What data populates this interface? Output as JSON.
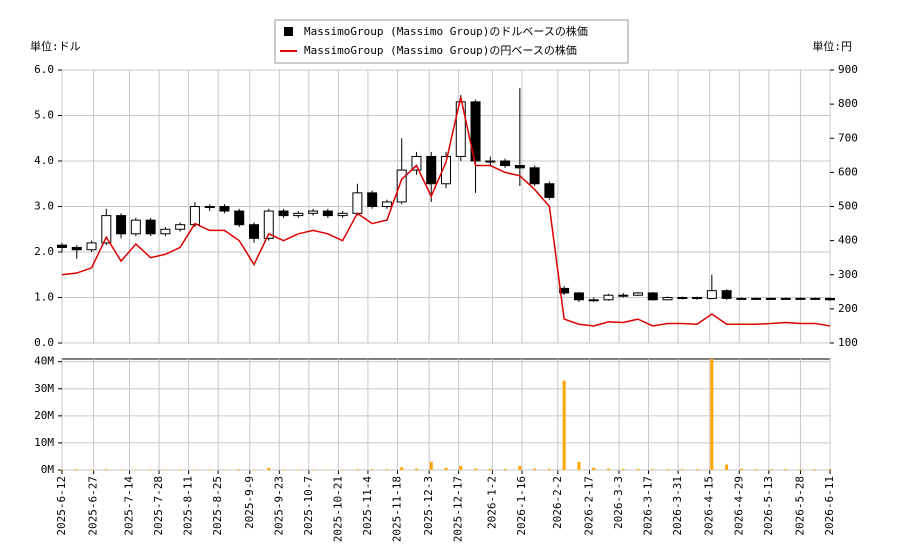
{
  "chart_data": {
    "type": "candlestick",
    "legend": "top",
    "y_unit_label": "単位:ドル",
    "y2_unit_label": "単位:円",
    "x": [
      "2025-06-12",
      "2025-06-19",
      "2025-06-26",
      "2025-07-03",
      "2025-07-10",
      "2025-07-17",
      "2025-07-24",
      "2025-07-31",
      "2025-08-07",
      "2025-08-14",
      "2025-08-21",
      "2025-08-28",
      "2025-09-04",
      "2025-09-11",
      "2025-09-18",
      "2025-09-25",
      "2025-10-02",
      "2025-10-09",
      "2025-10-16",
      "2025-10-23",
      "2025-10-30",
      "2025-11-06",
      "2025-11-13",
      "2025-11-20",
      "2025-11-27",
      "2025-12-04",
      "2025-12-11",
      "2025-12-18",
      "2025-12-25",
      "2026-01-01",
      "2026-01-08",
      "2026-01-15",
      "2026-01-22",
      "2026-01-29",
      "2026-02-05",
      "2026-02-12",
      "2026-02-19",
      "2026-02-26",
      "2026-03-05",
      "2026-03-12",
      "2026-03-19",
      "2026-03-26",
      "2026-04-02",
      "2026-04-09",
      "2026-04-16",
      "2026-04-23",
      "2026-04-30",
      "2026-05-07",
      "2026-05-14",
      "2026-05-21",
      "2026-05-28",
      "2026-06-04",
      "2026-06-11"
    ],
    "xlim": [
      "2025-06-12",
      "2026-06-11"
    ],
    "xticks": [
      {
        "value": "2025-06-12",
        "label": "2025-6-12"
      },
      {
        "value": "2025-06-27",
        "label": "2025-6-27"
      },
      {
        "value": "2025-07-14",
        "label": "2025-7-14"
      },
      {
        "value": "2025-07-28",
        "label": "2025-7-28"
      },
      {
        "value": "2025-08-11",
        "label": "2025-8-11"
      },
      {
        "value": "2025-08-25",
        "label": "2025-8-25"
      },
      {
        "value": "2025-09-09",
        "label": "2025-9-9"
      },
      {
        "value": "2025-09-23",
        "label": "2025-9-23"
      },
      {
        "value": "2025-10-07",
        "label": "2025-10-7"
      },
      {
        "value": "2025-10-21",
        "label": "2025-10-21"
      },
      {
        "value": "2025-11-04",
        "label": "2025-11-4"
      },
      {
        "value": "2025-11-18",
        "label": "2025-11-18"
      },
      {
        "value": "2025-12-03",
        "label": "2025-12-3"
      },
      {
        "value": "2025-12-17",
        "label": "2025-12-17"
      },
      {
        "value": "2026-01-02",
        "label": "2026-1-2"
      },
      {
        "value": "2026-01-16",
        "label": "2026-1-16"
      },
      {
        "value": "2026-02-02",
        "label": "2026-2-2"
      },
      {
        "value": "2026-02-17",
        "label": "2026-2-17"
      },
      {
        "value": "2026-03-03",
        "label": "2026-3-3"
      },
      {
        "value": "2026-03-17",
        "label": "2026-3-17"
      },
      {
        "value": "2026-03-31",
        "label": "2026-3-31"
      },
      {
        "value": "2026-04-15",
        "label": "2026-4-15"
      },
      {
        "value": "2026-04-29",
        "label": "2026-4-29"
      },
      {
        "value": "2026-05-13",
        "label": "2026-5-13"
      },
      {
        "value": "2026-05-28",
        "label": "2026-5-28"
      },
      {
        "value": "2026-06-11",
        "label": "2026-6-11"
      }
    ],
    "ylim": [
      0,
      6
    ],
    "yticks": [
      {
        "value": 0,
        "label": "0.0"
      },
      {
        "value": 1,
        "label": "1.0"
      },
      {
        "value": 2,
        "label": "2.0"
      },
      {
        "value": 3,
        "label": "3.0"
      },
      {
        "value": 4,
        "label": "4.0"
      },
      {
        "value": 5,
        "label": "5.0"
      },
      {
        "value": 6,
        "label": "6.0"
      }
    ],
    "y2lim": [
      100,
      900
    ],
    "y2ticks": [
      100,
      200,
      300,
      400,
      500,
      600,
      700,
      800,
      900
    ],
    "grid": true,
    "series": [
      {
        "name": "MassimoGroup (Massimo Group)のドルベースの株価",
        "color": "#000000",
        "open": [
          2.15,
          2.1,
          2.05,
          2.2,
          2.8,
          2.4,
          2.7,
          2.4,
          2.5,
          2.6,
          3.0,
          3.0,
          2.9,
          2.6,
          2.3,
          2.9,
          2.8,
          2.85,
          2.9,
          2.8,
          2.85,
          3.3,
          3.0,
          3.1,
          3.8,
          4.1,
          3.5,
          4.1,
          5.3,
          4.0,
          4.0,
          3.9,
          3.85,
          3.5,
          1.2,
          1.1,
          0.95,
          0.95,
          1.05,
          1.05,
          1.1,
          0.95,
          1.0,
          1.0,
          0.98,
          1.15,
          0.98,
          0.98,
          0.98,
          0.98,
          0.98,
          0.98,
          0.98
        ],
        "high": [
          2.2,
          2.15,
          2.25,
          2.95,
          2.85,
          2.75,
          2.75,
          2.55,
          2.65,
          3.1,
          3.05,
          3.05,
          2.95,
          2.65,
          2.95,
          2.95,
          2.9,
          2.95,
          2.95,
          2.9,
          3.5,
          3.35,
          3.15,
          4.5,
          4.2,
          4.2,
          4.2,
          5.45,
          5.35,
          4.1,
          4.05,
          5.6,
          3.9,
          3.55,
          1.25,
          1.12,
          1.0,
          1.08,
          1.1,
          1.12,
          1.12,
          1.02,
          1.02,
          1.02,
          1.5,
          1.18,
          1.0,
          1.0,
          1.0,
          1.0,
          1.0,
          1.0,
          1.0
        ],
        "low": [
          2.0,
          1.85,
          2.0,
          2.15,
          2.3,
          2.35,
          2.35,
          2.35,
          2.45,
          2.55,
          2.9,
          2.85,
          2.55,
          2.2,
          2.25,
          2.75,
          2.75,
          2.8,
          2.75,
          2.75,
          2.8,
          2.95,
          2.95,
          3.05,
          3.7,
          3.1,
          3.4,
          4.0,
          3.3,
          3.9,
          3.85,
          3.45,
          3.45,
          3.15,
          1.05,
          0.9,
          0.9,
          0.93,
          1.0,
          1.03,
          0.93,
          0.94,
          0.96,
          0.95,
          0.96,
          0.95,
          0.95,
          0.95,
          0.95,
          0.95,
          0.95,
          0.95,
          0.93
        ],
        "close": [
          2.1,
          2.05,
          2.2,
          2.8,
          2.4,
          2.7,
          2.4,
          2.5,
          2.6,
          3.0,
          3.0,
          2.9,
          2.6,
          2.3,
          2.9,
          2.8,
          2.85,
          2.9,
          2.8,
          2.85,
          3.3,
          3.0,
          3.1,
          3.8,
          4.1,
          3.5,
          4.1,
          5.3,
          4.0,
          4.0,
          3.9,
          3.85,
          3.5,
          3.2,
          1.1,
          0.95,
          0.95,
          1.05,
          1.05,
          1.1,
          0.95,
          1.0,
          1.0,
          0.98,
          1.15,
          0.98,
          0.98,
          0.98,
          0.98,
          0.98,
          0.98,
          0.98,
          0.95
        ]
      },
      {
        "name": "MassimoGroup (Massimo Group)の円ベースの株価",
        "color": "#dd0000",
        "axis": "y2",
        "values": [
          300,
          305,
          320,
          410,
          340,
          390,
          350,
          360,
          380,
          450,
          430,
          430,
          400,
          330,
          420,
          400,
          420,
          430,
          420,
          400,
          480,
          450,
          460,
          580,
          620,
          530,
          630,
          820,
          620,
          620,
          600,
          590,
          550,
          500,
          170,
          155,
          150,
          162,
          160,
          170,
          150,
          157,
          157,
          155,
          185,
          155,
          155,
          155,
          157,
          160,
          157,
          157,
          150
        ]
      }
    ],
    "volume": {
      "color": "#ffa500",
      "ylim": [
        0,
        41000000
      ],
      "yticks": [
        {
          "value": 0,
          "label": "0M"
        },
        {
          "value": 10000000,
          "label": "10M"
        },
        {
          "value": 20000000,
          "label": "20M"
        },
        {
          "value": 30000000,
          "label": "30M"
        },
        {
          "value": 40000000,
          "label": "40M"
        }
      ],
      "values": [
        200000,
        300000,
        200000,
        300000,
        200000,
        200000,
        200000,
        200000,
        200000,
        200000,
        200000,
        200000,
        300000,
        200000,
        800000,
        200000,
        200000,
        200000,
        200000,
        200000,
        300000,
        300000,
        300000,
        1000000,
        500000,
        3000000,
        800000,
        1500000,
        500000,
        400000,
        400000,
        1500000,
        500000,
        400000,
        33000000,
        3000000,
        800000,
        500000,
        400000,
        400000,
        300000,
        300000,
        300000,
        300000,
        41000000,
        2000000,
        500000,
        300000,
        300000,
        300000,
        300000,
        300000,
        300000
      ]
    }
  }
}
